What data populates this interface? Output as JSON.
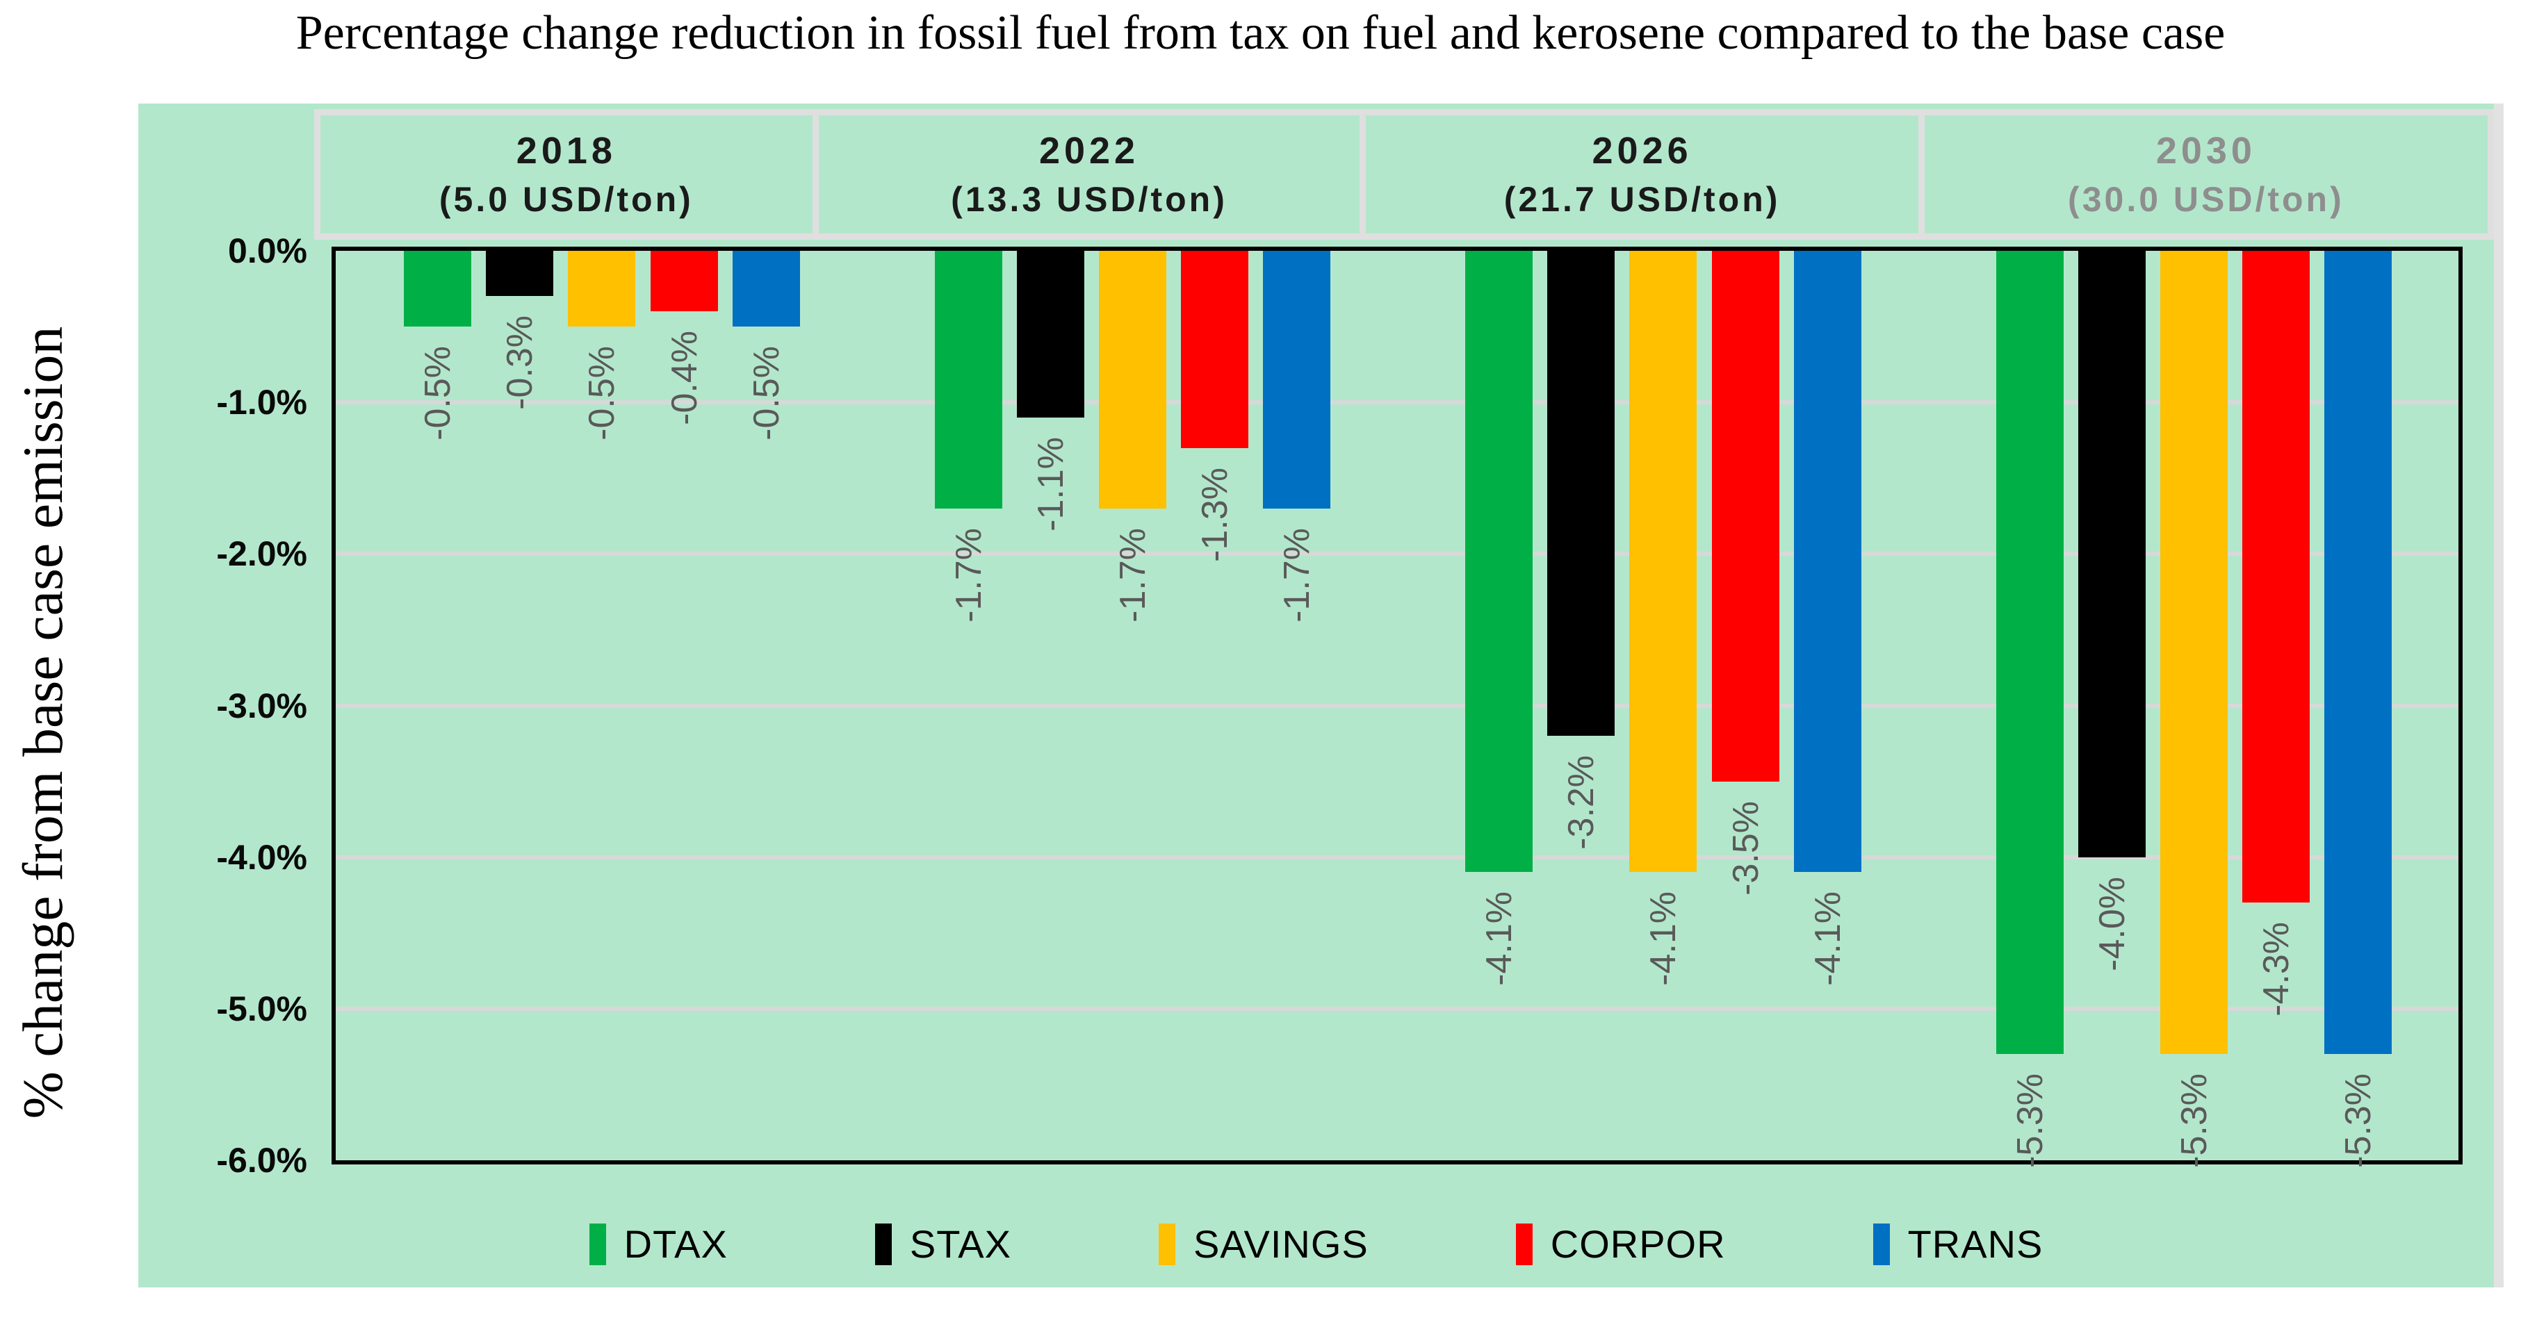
{
  "title": "Percentage change reduction in fossil fuel from tax on fuel and kerosene compared to the base case",
  "y_axis_title": "% change from base case emission",
  "colors": {
    "panel_background": "#B3E7CC",
    "gridline": "#D8D8D8",
    "header_border": "#DFDFDF",
    "data_label": "#595959",
    "muted_header_text": "#8E8E8E"
  },
  "chart_data": {
    "type": "bar",
    "title": "Percentage change reduction in fossil fuel from tax on fuel and kerosene compared to the base case",
    "ylabel": "% change from base case emission",
    "ylim": [
      -6,
      0
    ],
    "grid": "horizontal",
    "legend_position": "bottom",
    "y_ticks": [
      "0.0%",
      "-1.0%",
      "-2.0%",
      "-3.0%",
      "-4.0%",
      "-5.0%",
      "-6.0%"
    ],
    "groups": [
      {
        "year": "2018",
        "tax": "(5.0 USD/ton)",
        "muted": false
      },
      {
        "year": "2022",
        "tax": "(13.3 USD/ton)",
        "muted": false
      },
      {
        "year": "2026",
        "tax": "(21.7 USD/ton)",
        "muted": false
      },
      {
        "year": "2030",
        "tax": "(30.0 USD/ton)",
        "muted": true
      }
    ],
    "series": [
      {
        "name": "DTAX",
        "color": "#00B046",
        "values": [
          -0.5,
          -1.7,
          -4.1,
          -5.3
        ],
        "labels": [
          "-0.5%",
          "-1.7%",
          "-4.1%",
          "-5.3%"
        ]
      },
      {
        "name": "STAX",
        "color": "#000000",
        "values": [
          -0.3,
          -1.1,
          -3.2,
          -4.0
        ],
        "labels": [
          "-0.3%",
          "-1.1%",
          "-3.2%",
          "-4.0%"
        ]
      },
      {
        "name": "SAVINGS",
        "color": "#FFC000",
        "values": [
          -0.5,
          -1.7,
          -4.1,
          -5.3
        ],
        "labels": [
          "-0.5%",
          "-1.7%",
          "-4.1%",
          "-5.3%"
        ]
      },
      {
        "name": "CORPOR",
        "color": "#FF0000",
        "values": [
          -0.4,
          -1.3,
          -3.5,
          -4.3
        ],
        "labels": [
          "-0.4%",
          "-1.3%",
          "-3.5%",
          "-4.3%"
        ]
      },
      {
        "name": "TRANS",
        "color": "#0070C3",
        "values": [
          -0.5,
          -1.7,
          -4.1,
          -5.3
        ],
        "labels": [
          "-0.5%",
          "-1.7%",
          "-4.1%",
          "-5.3%"
        ]
      }
    ]
  }
}
